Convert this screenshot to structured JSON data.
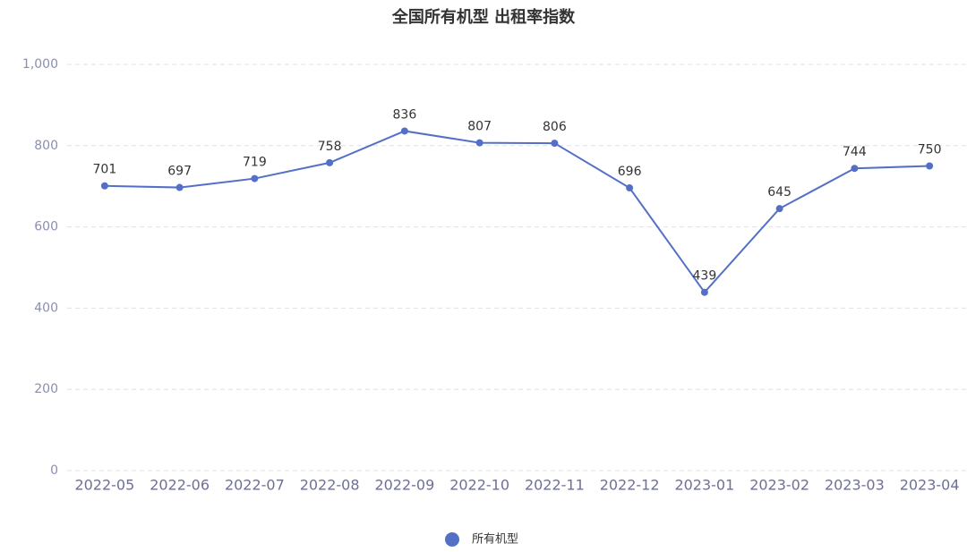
{
  "chart_data": {
    "type": "line",
    "title": "全国所有机型 出租率指数",
    "categories": [
      "2022-05",
      "2022-06",
      "2022-07",
      "2022-08",
      "2022-09",
      "2022-10",
      "2022-11",
      "2022-12",
      "2023-01",
      "2023-02",
      "2023-03",
      "2023-04"
    ],
    "series": [
      {
        "name": "所有机型",
        "color": "#5470c6",
        "values": [
          701,
          697,
          719,
          758,
          836,
          807,
          806,
          696,
          439,
          645,
          744,
          750
        ]
      }
    ],
    "ylim": [
      0,
      1000
    ],
    "yticks": [
      0,
      200,
      400,
      600,
      800,
      {
        "value": 1000,
        "label": "1,000"
      }
    ],
    "grid": true,
    "legend": "bottom"
  }
}
